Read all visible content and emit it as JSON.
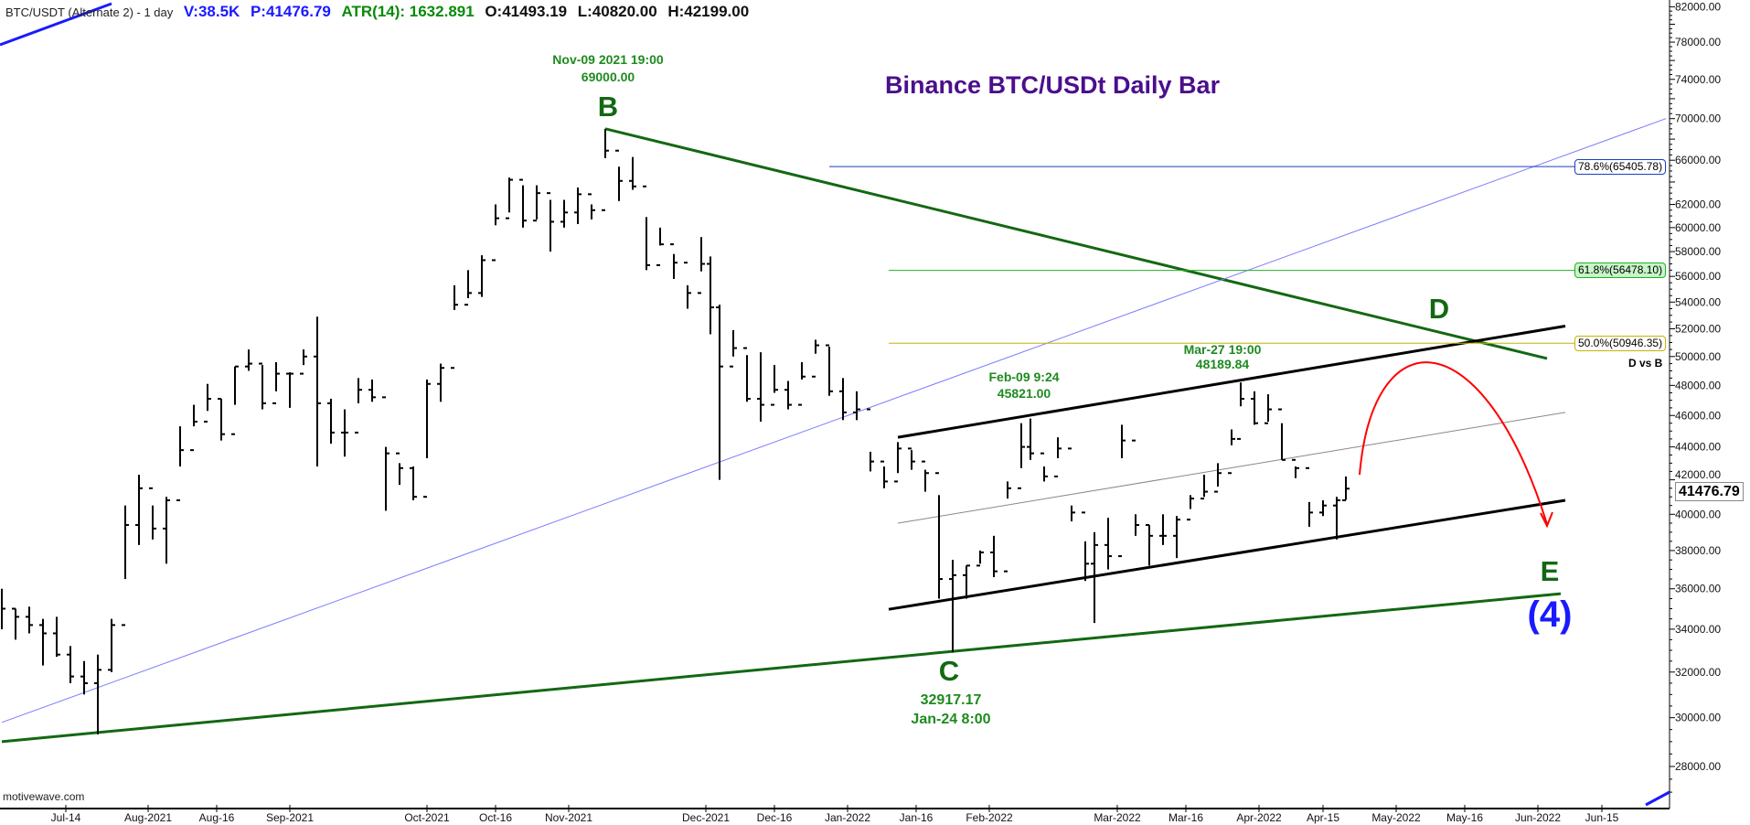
{
  "header": {
    "symbol": "BTC/USDT (Alternate 2) - 1 day",
    "volume": "V:38.5K",
    "price": "P:41476.79",
    "atr": "ATR(14): 1632.891",
    "open": "O:41493.19",
    "low": "L:40820.00",
    "high": "H:42199.00"
  },
  "title": "Binance BTC/USDt Daily Bar",
  "watermark": "motivewave.com",
  "colors": {
    "bars": "#000000",
    "wave_green": "#136813",
    "title": "#4b0f8c",
    "fib_786": "#1a3fbf",
    "fib_618": "#22b022",
    "fib_500": "#c8b400",
    "projection": "#ff0000",
    "trend_blue": "#7b7bff",
    "header_blue": "#1a1aff",
    "header_green": "#0a8a0a"
  },
  "annotations": {
    "b_time": "Nov-09 2021 19:00",
    "b_price": "69000.00",
    "b_label": "B",
    "c_label": "C",
    "c_price": "32917.17",
    "c_time": "Jan-24 8:00",
    "feb_time": "Feb-09 9:24",
    "feb_price": "45821.00",
    "mar_time": "Mar-27 19:00",
    "mar_price": "48189.84",
    "d_label": "D",
    "e_label": "E",
    "wave4_label": "(4)",
    "d_vs_b": "D vs B"
  },
  "fib_levels": [
    {
      "label": "78.6%(65405.78)",
      "price": 65405.78,
      "color": "#1a3fbf",
      "bg": "#ffffff",
      "start": "2021-12-28"
    },
    {
      "label": "61.8%(56478.10)",
      "price": 56478.1,
      "color": "#22b022",
      "bg": "#c8f5c8",
      "start": "2022-01-10"
    },
    {
      "label": "50.0%(50946.35)",
      "price": 50946.35,
      "color": "#c8b400",
      "bg": "#ffffff",
      "start": "2022-01-10"
    }
  ],
  "current_price": "41476.79",
  "chart_data": {
    "type": "bar",
    "y_scale": "log",
    "ylim": [
      26500,
      83000
    ],
    "grid": false,
    "y_ticks": [
      "82000.00",
      "78000.00",
      "74000.00",
      "70000.00",
      "66000.00",
      "62000.00",
      "60000.00",
      "58000.00",
      "56000.00",
      "54000.00",
      "52000.00",
      "50000.00",
      "48000.00",
      "46000.00",
      "44000.00",
      "42000.00",
      "40000.00",
      "38000.00",
      "36000.00",
      "34000.00",
      "32000.00",
      "30000.00",
      "28000.00"
    ],
    "x_ticks": [
      {
        "label": "Jul-14",
        "date": "2021-07-14"
      },
      {
        "label": "Aug-2021",
        "date": "2021-08-01"
      },
      {
        "label": "Aug-16",
        "date": "2021-08-16"
      },
      {
        "label": "Sep-2021",
        "date": "2021-09-01"
      },
      {
        "label": "Oct-2021",
        "date": "2021-10-01"
      },
      {
        "label": "Oct-16",
        "date": "2021-10-16"
      },
      {
        "label": "Nov-2021",
        "date": "2021-11-01"
      },
      {
        "label": "Dec-2021",
        "date": "2021-12-01"
      },
      {
        "label": "Dec-16",
        "date": "2021-12-16"
      },
      {
        "label": "Jan-2022",
        "date": "2022-01-01"
      },
      {
        "label": "Jan-16",
        "date": "2022-01-16"
      },
      {
        "label": "Feb-2022",
        "date": "2022-02-01"
      },
      {
        "label": "Mar-2022",
        "date": "2022-03-01"
      },
      {
        "label": "Mar-16",
        "date": "2022-03-16"
      },
      {
        "label": "Apr-2022",
        "date": "2022-04-01"
      },
      {
        "label": "Apr-15",
        "date": "2022-04-15"
      },
      {
        "label": "May-2022",
        "date": "2022-05-01"
      },
      {
        "label": "May-16",
        "date": "2022-05-16"
      },
      {
        "label": "Jun-2022",
        "date": "2022-06-01"
      },
      {
        "label": "Jun-15",
        "date": "2022-06-15"
      }
    ],
    "ohlc_columns": [
      "date",
      "high",
      "low",
      "close"
    ],
    "ohlc": [
      [
        "2021-06-30",
        36000,
        34000,
        35000
      ],
      [
        "2021-07-03",
        35000,
        33500,
        34600
      ],
      [
        "2021-07-06",
        35100,
        33800,
        34200
      ],
      [
        "2021-07-09",
        34500,
        32300,
        33800
      ],
      [
        "2021-07-12",
        34600,
        32700,
        32800
      ],
      [
        "2021-07-15",
        33200,
        31500,
        31800
      ],
      [
        "2021-07-18",
        32500,
        31000,
        31500
      ],
      [
        "2021-07-21",
        32800,
        29300,
        32100
      ],
      [
        "2021-07-24",
        34500,
        32000,
        34200
      ],
      [
        "2021-07-27",
        40500,
        36500,
        39400
      ],
      [
        "2021-07-30",
        42300,
        38300,
        41500
      ],
      [
        "2021-08-02",
        40500,
        38600,
        39200
      ],
      [
        "2021-08-05",
        41000,
        37300,
        40800
      ],
      [
        "2021-08-08",
        45300,
        42800,
        43800
      ],
      [
        "2021-08-11",
        46700,
        45300,
        45600
      ],
      [
        "2021-08-14",
        48100,
        46300,
        47100
      ],
      [
        "2021-08-17",
        47100,
        44400,
        44800
      ],
      [
        "2021-08-20",
        49300,
        46700,
        49300
      ],
      [
        "2021-08-23",
        50500,
        49000,
        49500
      ],
      [
        "2021-08-26",
        49400,
        46400,
        46800
      ],
      [
        "2021-08-29",
        49600,
        47600,
        48800
      ],
      [
        "2021-09-01",
        48900,
        46500,
        48800
      ],
      [
        "2021-09-04",
        50500,
        49400,
        50000
      ],
      [
        "2021-09-07",
        52900,
        42800,
        46800
      ],
      [
        "2021-09-10",
        47100,
        44200,
        44900
      ],
      [
        "2021-09-13",
        46400,
        43400,
        44900
      ],
      [
        "2021-09-16",
        48500,
        46800,
        47700
      ],
      [
        "2021-09-19",
        48400,
        46900,
        47200
      ],
      [
        "2021-09-22",
        44000,
        40200,
        43600
      ],
      [
        "2021-09-25",
        43000,
        41700,
        42700
      ],
      [
        "2021-09-28",
        42800,
        40800,
        41000
      ],
      [
        "2021-10-01",
        48400,
        43300,
        48100
      ],
      [
        "2021-10-04",
        49500,
        46900,
        49200
      ],
      [
        "2021-10-07",
        55300,
        53400,
        53800
      ],
      [
        "2021-10-10",
        56500,
        54300,
        54700
      ],
      [
        "2021-10-13",
        57700,
        54400,
        57300
      ],
      [
        "2021-10-16",
        62000,
        60200,
        60800
      ],
      [
        "2021-10-19",
        64400,
        61300,
        64200
      ],
      [
        "2021-10-22",
        63700,
        60000,
        60600
      ],
      [
        "2021-10-25",
        63700,
        60700,
        63000
      ],
      [
        "2021-10-28",
        62400,
        58000,
        60500
      ],
      [
        "2021-10-31",
        62400,
        60000,
        61300
      ],
      [
        "2021-11-03",
        63500,
        60300,
        62900
      ],
      [
        "2021-11-06",
        62000,
        60700,
        61500
      ],
      [
        "2021-11-09",
        69000,
        66200,
        66900
      ],
      [
        "2021-11-12",
        65400,
        62300,
        64100
      ],
      [
        "2021-11-15",
        66300,
        63300,
        63600
      ],
      [
        "2021-11-18",
        60900,
        56500,
        56900
      ],
      [
        "2021-11-21",
        60000,
        58500,
        58600
      ],
      [
        "2021-11-24",
        57800,
        55800,
        57100
      ],
      [
        "2021-11-27",
        55300,
        53500,
        54700
      ],
      [
        "2021-11-30",
        59200,
        56400,
        57000
      ],
      [
        "2021-12-02",
        57600,
        51600,
        53600
      ],
      [
        "2021-12-04",
        53800,
        42000,
        49300
      ],
      [
        "2021-12-07",
        51900,
        50000,
        50600
      ],
      [
        "2021-12-10",
        50100,
        46900,
        47100
      ],
      [
        "2021-12-13",
        50300,
        45600,
        46700
      ],
      [
        "2021-12-16",
        49400,
        47500,
        47700
      ],
      [
        "2021-12-19",
        48300,
        46400,
        46700
      ],
      [
        "2021-12-22",
        49600,
        48400,
        48600
      ],
      [
        "2021-12-25",
        51200,
        50200,
        50800
      ],
      [
        "2021-12-28",
        50700,
        47300,
        47600
      ],
      [
        "2021-12-31",
        48500,
        45700,
        46200
      ],
      [
        "2022-01-03",
        47600,
        45700,
        46400
      ],
      [
        "2022-01-06",
        43700,
        42500,
        43100
      ],
      [
        "2022-01-09",
        42800,
        41500,
        41900
      ],
      [
        "2022-01-12",
        44300,
        42400,
        43900
      ],
      [
        "2022-01-15",
        43800,
        42600,
        43100
      ],
      [
        "2022-01-18",
        42600,
        41300,
        42400
      ],
      [
        "2022-01-21",
        41100,
        35500,
        36500
      ],
      [
        "2022-01-24",
        37500,
        32900,
        36700
      ],
      [
        "2022-01-27",
        37200,
        35500,
        37200
      ],
      [
        "2022-01-30",
        38000,
        37300,
        37900
      ],
      [
        "2022-02-02",
        38800,
        36600,
        36900
      ],
      [
        "2022-02-05",
        41900,
        40900,
        41500
      ],
      [
        "2022-02-08",
        45500,
        42700,
        44000
      ],
      [
        "2022-02-10",
        45800,
        43200,
        43600
      ],
      [
        "2022-02-13",
        42800,
        41900,
        42200
      ],
      [
        "2022-02-16",
        44600,
        43300,
        43900
      ],
      [
        "2022-02-19",
        40500,
        39600,
        40100
      ],
      [
        "2022-02-22",
        38500,
        36400,
        37300
      ],
      [
        "2022-02-24",
        39000,
        34300,
        38300
      ],
      [
        "2022-02-27",
        39800,
        37000,
        37700
      ],
      [
        "2022-03-02",
        45400,
        43300,
        44400
      ],
      [
        "2022-03-05",
        40000,
        38800,
        39400
      ],
      [
        "2022-03-08",
        39400,
        37200,
        38800
      ],
      [
        "2022-03-11",
        40000,
        38300,
        38800
      ],
      [
        "2022-03-14",
        39900,
        37600,
        39700
      ],
      [
        "2022-03-17",
        41100,
        40300,
        40900
      ],
      [
        "2022-03-20",
        42300,
        41000,
        41300
      ],
      [
        "2022-03-23",
        43000,
        41600,
        42400
      ],
      [
        "2022-03-26",
        45100,
        44100,
        44500
      ],
      [
        "2022-03-28",
        48200,
        46600,
        47100
      ],
      [
        "2022-03-31",
        47600,
        45400,
        45500
      ],
      [
        "2022-04-03",
        47400,
        45600,
        46400
      ],
      [
        "2022-04-06",
        45500,
        43200,
        43200
      ],
      [
        "2022-04-09",
        42800,
        42100,
        42700
      ],
      [
        "2022-04-12",
        40700,
        39300,
        40100
      ],
      [
        "2022-04-15",
        40800,
        39900,
        40500
      ],
      [
        "2022-04-18",
        41000,
        38600,
        40800
      ],
      [
        "2022-04-20",
        42199,
        40820,
        41476.79
      ]
    ],
    "trendlines": [
      {
        "id": "b-d-line",
        "color": "#136813",
        "width": 3,
        "from": [
          "2021-11-09",
          69000
        ],
        "to": [
          "2022-06-03",
          49860
        ]
      },
      {
        "id": "a-c-e-line",
        "color": "#136813",
        "width": 3,
        "from": [
          "2021-06-30",
          29000
        ],
        "to": [
          "2022-06-06",
          35750
        ]
      },
      {
        "id": "channel-upper",
        "color": "#000000",
        "width": 3,
        "from": [
          "2022-01-12",
          44600
        ],
        "to": [
          "2022-06-07",
          52200
        ]
      },
      {
        "id": "channel-lower",
        "color": "#000000",
        "width": 3,
        "from": [
          "2022-01-10",
          34970
        ],
        "to": [
          "2022-06-07",
          40800
        ]
      },
      {
        "id": "channel-mid",
        "color": "#888888",
        "width": 1,
        "from": [
          "2022-01-12",
          39500
        ],
        "to": [
          "2022-06-07",
          46200
        ]
      },
      {
        "id": "blue-trend",
        "color": "#7b7bff",
        "width": 1,
        "from": [
          "2021-06-30",
          29800
        ],
        "to": [
          "2022-06-29",
          70000
        ]
      }
    ],
    "projection": {
      "color": "#ff0000",
      "start": [
        "2022-04-23",
        42300
      ],
      "peak": [
        "2022-05-09",
        50000
      ],
      "end": [
        "2022-06-03",
        39450
      ]
    }
  }
}
